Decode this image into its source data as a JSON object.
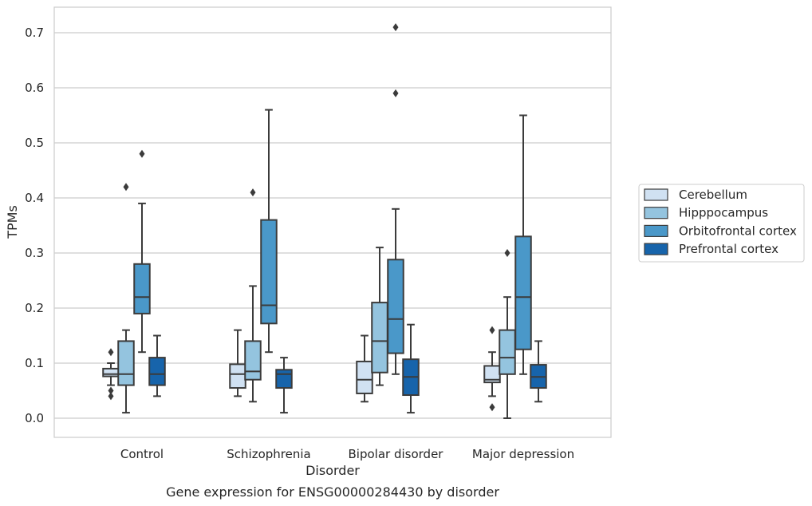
{
  "caption": "Gene expression for ENSG00000284430 by disorder",
  "chart_data": {
    "type": "box",
    "xlabel": "Disorder",
    "ylabel": "TPMs",
    "ylim": [
      -0.035,
      0.745
    ],
    "yticks": [
      0.0,
      0.1,
      0.2,
      0.3,
      0.4,
      0.5,
      0.6,
      0.7
    ],
    "ytick_labels": [
      "0.0",
      "0.1",
      "0.2",
      "0.3",
      "0.4",
      "0.5",
      "0.6",
      "0.7"
    ],
    "grid": "horizontal",
    "legend_position": "right",
    "categories": [
      "Control",
      "Schizophrenia",
      "Bipolar disorder",
      "Major depression"
    ],
    "series": [
      {
        "name": "Cerebellum",
        "color": "#d0e1f2",
        "boxes": [
          {
            "whisker_low": 0.06,
            "q1": 0.076,
            "median": 0.08,
            "q3": 0.09,
            "whisker_high": 0.1,
            "outliers": [
              0.12,
              0.05,
              0.04
            ]
          },
          {
            "whisker_low": 0.04,
            "q1": 0.055,
            "median": 0.08,
            "q3": 0.098,
            "whisker_high": 0.16,
            "outliers": []
          },
          {
            "whisker_low": 0.03,
            "q1": 0.045,
            "median": 0.07,
            "q3": 0.103,
            "whisker_high": 0.15,
            "outliers": []
          },
          {
            "whisker_low": 0.04,
            "q1": 0.065,
            "median": 0.07,
            "q3": 0.095,
            "whisker_high": 0.12,
            "outliers": [
              0.16,
              0.02
            ]
          }
        ]
      },
      {
        "name": "Hipppocampus",
        "color": "#94c4df",
        "boxes": [
          {
            "whisker_low": 0.01,
            "q1": 0.06,
            "median": 0.08,
            "q3": 0.14,
            "whisker_high": 0.16,
            "outliers": [
              0.42
            ]
          },
          {
            "whisker_low": 0.03,
            "q1": 0.07,
            "median": 0.085,
            "q3": 0.14,
            "whisker_high": 0.24,
            "outliers": [
              0.41
            ]
          },
          {
            "whisker_low": 0.06,
            "q1": 0.083,
            "median": 0.14,
            "q3": 0.21,
            "whisker_high": 0.31,
            "outliers": []
          },
          {
            "whisker_low": 0.0,
            "q1": 0.08,
            "median": 0.11,
            "q3": 0.16,
            "whisker_high": 0.22,
            "outliers": [
              0.3
            ]
          }
        ]
      },
      {
        "name": "Orbitofrontal cortex",
        "color": "#4a98c9",
        "boxes": [
          {
            "whisker_low": 0.12,
            "q1": 0.19,
            "median": 0.22,
            "q3": 0.28,
            "whisker_high": 0.39,
            "outliers": [
              0.48
            ]
          },
          {
            "whisker_low": 0.12,
            "q1": 0.172,
            "median": 0.205,
            "q3": 0.36,
            "whisker_high": 0.56,
            "outliers": []
          },
          {
            "whisker_low": 0.08,
            "q1": 0.118,
            "median": 0.18,
            "q3": 0.288,
            "whisker_high": 0.38,
            "outliers": [
              0.71,
              0.59
            ]
          },
          {
            "whisker_low": 0.08,
            "q1": 0.125,
            "median": 0.22,
            "q3": 0.33,
            "whisker_high": 0.55,
            "outliers": []
          }
        ]
      },
      {
        "name": "Prefrontal cortex",
        "color": "#1764ab",
        "boxes": [
          {
            "whisker_low": 0.04,
            "q1": 0.06,
            "median": 0.08,
            "q3": 0.11,
            "whisker_high": 0.15,
            "outliers": []
          },
          {
            "whisker_low": 0.01,
            "q1": 0.055,
            "median": 0.08,
            "q3": 0.088,
            "whisker_high": 0.11,
            "outliers": []
          },
          {
            "whisker_low": 0.01,
            "q1": 0.042,
            "median": 0.075,
            "q3": 0.107,
            "whisker_high": 0.17,
            "outliers": []
          },
          {
            "whisker_low": 0.03,
            "q1": 0.055,
            "median": 0.075,
            "q3": 0.097,
            "whisker_high": 0.14,
            "outliers": []
          }
        ]
      }
    ]
  }
}
